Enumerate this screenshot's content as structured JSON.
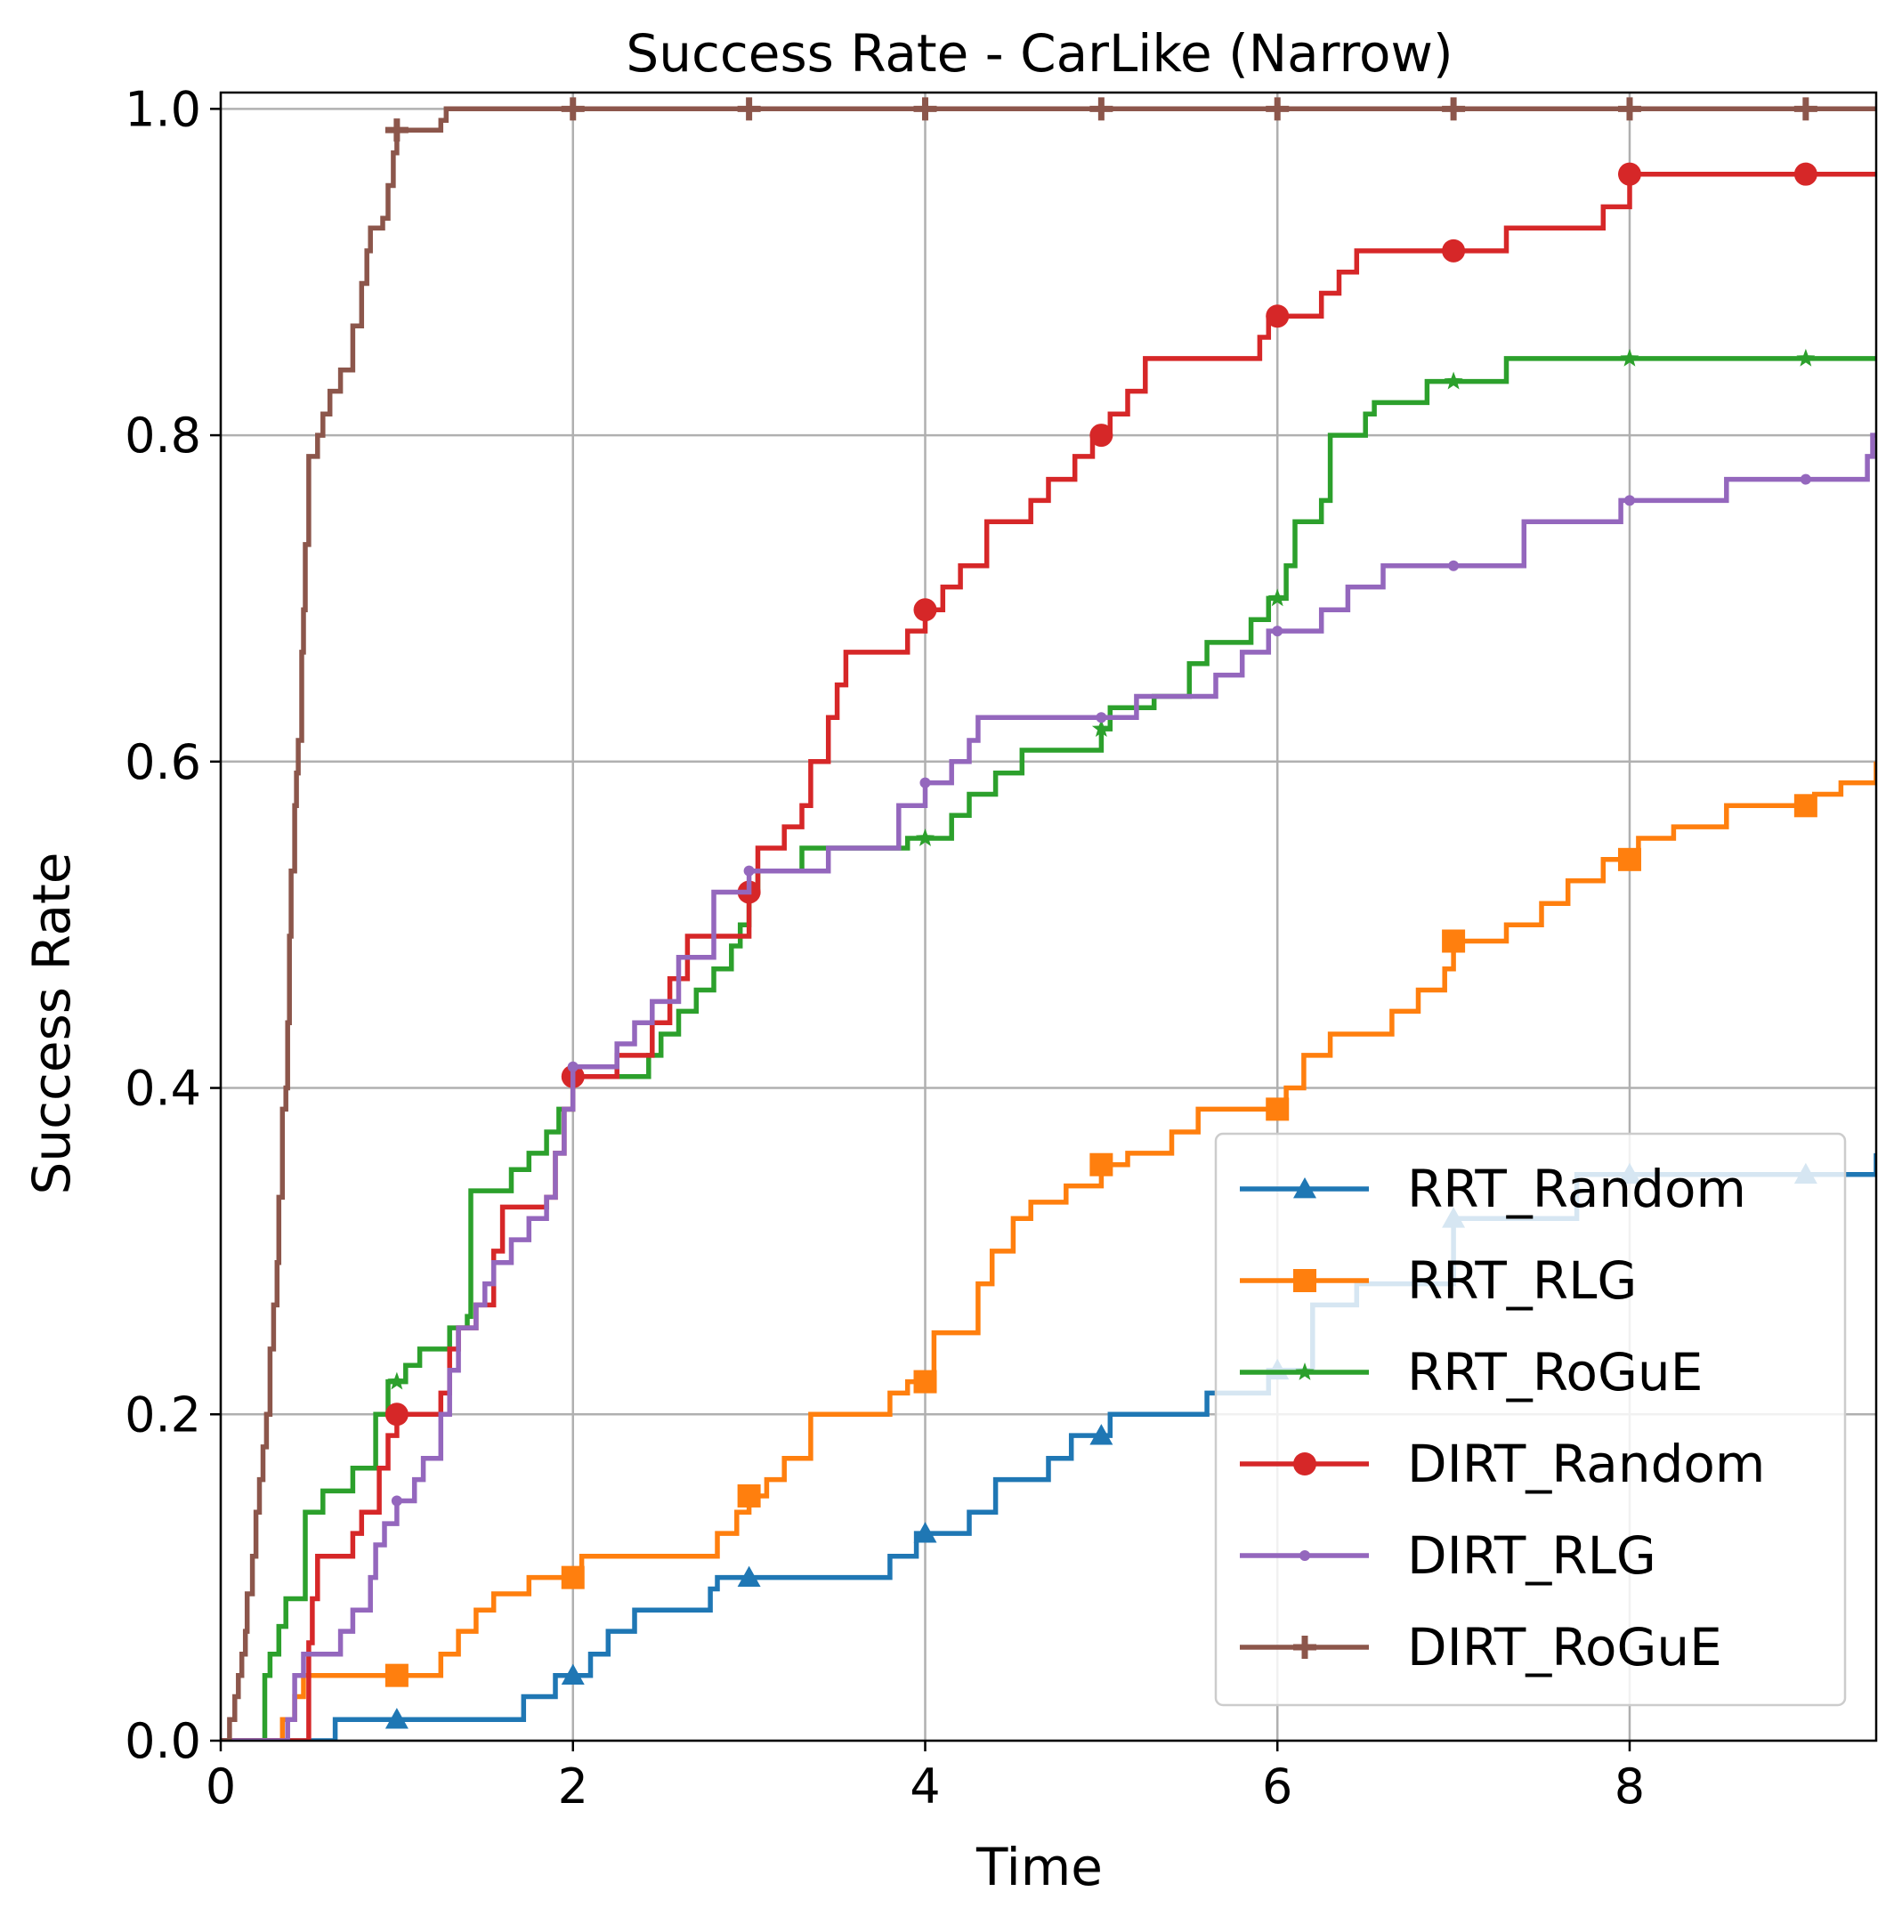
{
  "chart_data": {
    "type": "line",
    "title": "Success Rate - CarLike (Narrow)",
    "xlabel": "Time",
    "ylabel": "Success Rate",
    "xlim": [
      0,
      9.4
    ],
    "ylim": [
      0,
      1.01
    ],
    "xticks": [
      0,
      2,
      4,
      6,
      8
    ],
    "xtick_labels": [
      "0",
      "2",
      "4",
      "6",
      "8"
    ],
    "yticks": [
      0.0,
      0.2,
      0.4,
      0.6,
      0.8,
      1.0
    ],
    "ytick_labels": [
      "0.0",
      "0.2",
      "0.4",
      "0.6",
      "0.8",
      "1.0"
    ],
    "grid": true,
    "legend_position": "lower-right",
    "step": "post",
    "series": [
      {
        "name": "RRT_Random",
        "color": "#1f77b4",
        "marker": "triangle",
        "points": [
          [
            0.0,
            0
          ],
          [
            0.65,
            0.013
          ],
          [
            1.72,
            0.027
          ],
          [
            1.9,
            0.04
          ],
          [
            2.1,
            0.053
          ],
          [
            2.2,
            0.067
          ],
          [
            2.35,
            0.08
          ],
          [
            2.78,
            0.093
          ],
          [
            2.82,
            0.1
          ],
          [
            3.8,
            0.113
          ],
          [
            3.95,
            0.127
          ],
          [
            4.25,
            0.14
          ],
          [
            4.4,
            0.16
          ],
          [
            4.7,
            0.173
          ],
          [
            4.83,
            0.187
          ],
          [
            5.05,
            0.2
          ],
          [
            5.6,
            0.213
          ],
          [
            5.95,
            0.227
          ],
          [
            6.2,
            0.267
          ],
          [
            6.45,
            0.28
          ],
          [
            7.0,
            0.32
          ],
          [
            7.7,
            0.347
          ],
          [
            9.4,
            0.36
          ]
        ],
        "marker_x": [
          1,
          2,
          3,
          4,
          5,
          6,
          7,
          8,
          9
        ]
      },
      {
        "name": "RRT_RLG",
        "color": "#ff7f0e",
        "marker": "square",
        "points": [
          [
            0.0,
            0
          ],
          [
            0.35,
            0.013
          ],
          [
            0.42,
            0.027
          ],
          [
            0.47,
            0.04
          ],
          [
            1.25,
            0.053
          ],
          [
            1.35,
            0.067
          ],
          [
            1.45,
            0.08
          ],
          [
            1.55,
            0.09
          ],
          [
            1.75,
            0.1
          ],
          [
            2.05,
            0.113
          ],
          [
            2.82,
            0.127
          ],
          [
            2.93,
            0.14
          ],
          [
            3.0,
            0.15
          ],
          [
            3.1,
            0.16
          ],
          [
            3.2,
            0.173
          ],
          [
            3.35,
            0.2
          ],
          [
            3.8,
            0.213
          ],
          [
            3.9,
            0.22
          ],
          [
            4.05,
            0.25
          ],
          [
            4.3,
            0.28
          ],
          [
            4.38,
            0.3
          ],
          [
            4.5,
            0.32
          ],
          [
            4.6,
            0.33
          ],
          [
            4.8,
            0.34
          ],
          [
            5.0,
            0.353
          ],
          [
            5.15,
            0.36
          ],
          [
            5.4,
            0.373
          ],
          [
            5.55,
            0.387
          ],
          [
            6.05,
            0.4
          ],
          [
            6.15,
            0.42
          ],
          [
            6.3,
            0.433
          ],
          [
            6.65,
            0.447
          ],
          [
            6.8,
            0.46
          ],
          [
            6.95,
            0.473
          ],
          [
            7.0,
            0.49
          ],
          [
            7.3,
            0.5
          ],
          [
            7.5,
            0.513
          ],
          [
            7.65,
            0.527
          ],
          [
            7.85,
            0.54
          ],
          [
            8.05,
            0.553
          ],
          [
            8.25,
            0.56
          ],
          [
            8.55,
            0.573
          ],
          [
            9.05,
            0.58
          ],
          [
            9.2,
            0.587
          ],
          [
            9.4,
            0.6
          ]
        ],
        "marker_x": [
          1,
          2,
          3,
          4,
          5,
          6,
          7,
          8,
          9
        ]
      },
      {
        "name": "RRT_RoGuE",
        "color": "#2ca02c",
        "marker": "star",
        "points": [
          [
            0.0,
            0
          ],
          [
            0.25,
            0.04
          ],
          [
            0.28,
            0.053
          ],
          [
            0.33,
            0.07
          ],
          [
            0.37,
            0.087
          ],
          [
            0.48,
            0.14
          ],
          [
            0.58,
            0.153
          ],
          [
            0.75,
            0.167
          ],
          [
            0.88,
            0.2
          ],
          [
            0.95,
            0.22
          ],
          [
            1.05,
            0.23
          ],
          [
            1.13,
            0.24
          ],
          [
            1.3,
            0.253
          ],
          [
            1.4,
            0.26
          ],
          [
            1.42,
            0.337
          ],
          [
            1.65,
            0.35
          ],
          [
            1.75,
            0.36
          ],
          [
            1.85,
            0.373
          ],
          [
            1.92,
            0.387
          ],
          [
            2.0,
            0.407
          ],
          [
            2.43,
            0.42
          ],
          [
            2.5,
            0.433
          ],
          [
            2.6,
            0.447
          ],
          [
            2.7,
            0.46
          ],
          [
            2.8,
            0.473
          ],
          [
            2.9,
            0.487
          ],
          [
            2.95,
            0.5
          ],
          [
            3.0,
            0.52
          ],
          [
            3.05,
            0.533
          ],
          [
            3.3,
            0.547
          ],
          [
            3.9,
            0.553
          ],
          [
            4.15,
            0.567
          ],
          [
            4.25,
            0.58
          ],
          [
            4.4,
            0.593
          ],
          [
            4.55,
            0.607
          ],
          [
            5.0,
            0.62
          ],
          [
            5.05,
            0.633
          ],
          [
            5.3,
            0.64
          ],
          [
            5.5,
            0.66
          ],
          [
            5.6,
            0.673
          ],
          [
            5.85,
            0.687
          ],
          [
            5.95,
            0.7
          ],
          [
            6.05,
            0.72
          ],
          [
            6.1,
            0.747
          ],
          [
            6.25,
            0.76
          ],
          [
            6.3,
            0.8
          ],
          [
            6.5,
            0.813
          ],
          [
            6.55,
            0.82
          ],
          [
            6.85,
            0.833
          ],
          [
            7.3,
            0.847
          ],
          [
            9.4,
            0.847
          ]
        ],
        "marker_x": [
          1,
          2,
          3,
          4,
          5,
          6,
          7,
          8,
          9
        ]
      },
      {
        "name": "DIRT_Random",
        "color": "#d62728",
        "marker": "circle",
        "points": [
          [
            0.0,
            0
          ],
          [
            0.5,
            0.06
          ],
          [
            0.52,
            0.087
          ],
          [
            0.55,
            0.113
          ],
          [
            0.75,
            0.127
          ],
          [
            0.8,
            0.14
          ],
          [
            0.9,
            0.167
          ],
          [
            0.95,
            0.187
          ],
          [
            1.0,
            0.2
          ],
          [
            1.25,
            0.213
          ],
          [
            1.3,
            0.24
          ],
          [
            1.35,
            0.253
          ],
          [
            1.45,
            0.267
          ],
          [
            1.55,
            0.3
          ],
          [
            1.6,
            0.327
          ],
          [
            1.85,
            0.333
          ],
          [
            1.9,
            0.36
          ],
          [
            1.95,
            0.387
          ],
          [
            2.0,
            0.407
          ],
          [
            2.25,
            0.42
          ],
          [
            2.45,
            0.44
          ],
          [
            2.55,
            0.467
          ],
          [
            2.65,
            0.493
          ],
          [
            3.0,
            0.52
          ],
          [
            3.05,
            0.547
          ],
          [
            3.2,
            0.56
          ],
          [
            3.3,
            0.573
          ],
          [
            3.35,
            0.6
          ],
          [
            3.45,
            0.627
          ],
          [
            3.5,
            0.647
          ],
          [
            3.55,
            0.667
          ],
          [
            3.9,
            0.68
          ],
          [
            4.0,
            0.693
          ],
          [
            4.1,
            0.707
          ],
          [
            4.2,
            0.72
          ],
          [
            4.35,
            0.747
          ],
          [
            4.6,
            0.76
          ],
          [
            4.7,
            0.773
          ],
          [
            4.85,
            0.787
          ],
          [
            4.95,
            0.8
          ],
          [
            5.05,
            0.813
          ],
          [
            5.15,
            0.827
          ],
          [
            5.25,
            0.847
          ],
          [
            5.9,
            0.86
          ],
          [
            5.95,
            0.873
          ],
          [
            6.25,
            0.887
          ],
          [
            6.35,
            0.9
          ],
          [
            6.45,
            0.913
          ],
          [
            7.3,
            0.927
          ],
          [
            7.85,
            0.94
          ],
          [
            8.0,
            0.96
          ],
          [
            9.4,
            0.96
          ]
        ],
        "marker_x": [
          1,
          2,
          3,
          4,
          5,
          6,
          7,
          8,
          9
        ]
      },
      {
        "name": "DIRT_RLG",
        "color": "#9467bd",
        "marker": "point",
        "points": [
          [
            0.0,
            0
          ],
          [
            0.38,
            0.013
          ],
          [
            0.42,
            0.04
          ],
          [
            0.47,
            0.053
          ],
          [
            0.68,
            0.067
          ],
          [
            0.75,
            0.08
          ],
          [
            0.85,
            0.1
          ],
          [
            0.88,
            0.12
          ],
          [
            0.93,
            0.133
          ],
          [
            1.0,
            0.147
          ],
          [
            1.1,
            0.16
          ],
          [
            1.15,
            0.173
          ],
          [
            1.25,
            0.2
          ],
          [
            1.3,
            0.227
          ],
          [
            1.35,
            0.253
          ],
          [
            1.45,
            0.267
          ],
          [
            1.5,
            0.28
          ],
          [
            1.55,
            0.293
          ],
          [
            1.65,
            0.307
          ],
          [
            1.75,
            0.32
          ],
          [
            1.85,
            0.333
          ],
          [
            1.9,
            0.36
          ],
          [
            1.95,
            0.387
          ],
          [
            2.0,
            0.413
          ],
          [
            2.25,
            0.427
          ],
          [
            2.35,
            0.44
          ],
          [
            2.45,
            0.453
          ],
          [
            2.6,
            0.48
          ],
          [
            2.8,
            0.52
          ],
          [
            3.0,
            0.533
          ],
          [
            3.45,
            0.547
          ],
          [
            3.85,
            0.573
          ],
          [
            4.0,
            0.587
          ],
          [
            4.15,
            0.6
          ],
          [
            4.25,
            0.613
          ],
          [
            4.3,
            0.627
          ],
          [
            5.2,
            0.64
          ],
          [
            5.65,
            0.653
          ],
          [
            5.8,
            0.667
          ],
          [
            5.95,
            0.68
          ],
          [
            6.25,
            0.693
          ],
          [
            6.4,
            0.707
          ],
          [
            6.6,
            0.72
          ],
          [
            7.4,
            0.747
          ],
          [
            7.95,
            0.76
          ],
          [
            8.55,
            0.773
          ],
          [
            9.35,
            0.787
          ],
          [
            9.38,
            0.8
          ],
          [
            9.4,
            0.8
          ]
        ],
        "marker_x": [
          1,
          2,
          3,
          4,
          5,
          6,
          7,
          8,
          9
        ]
      },
      {
        "name": "DIRT_RoGuE",
        "color": "#8c564b",
        "marker": "plus",
        "points": [
          [
            0.0,
            0
          ],
          [
            0.05,
            0.013
          ],
          [
            0.08,
            0.027
          ],
          [
            0.1,
            0.04
          ],
          [
            0.12,
            0.053
          ],
          [
            0.14,
            0.067
          ],
          [
            0.15,
            0.09
          ],
          [
            0.18,
            0.113
          ],
          [
            0.2,
            0.14
          ],
          [
            0.22,
            0.16
          ],
          [
            0.24,
            0.18
          ],
          [
            0.26,
            0.2
          ],
          [
            0.28,
            0.24
          ],
          [
            0.3,
            0.267
          ],
          [
            0.32,
            0.293
          ],
          [
            0.33,
            0.333
          ],
          [
            0.35,
            0.387
          ],
          [
            0.37,
            0.4
          ],
          [
            0.38,
            0.44
          ],
          [
            0.39,
            0.493
          ],
          [
            0.4,
            0.533
          ],
          [
            0.42,
            0.573
          ],
          [
            0.43,
            0.593
          ],
          [
            0.44,
            0.613
          ],
          [
            0.46,
            0.667
          ],
          [
            0.47,
            0.693
          ],
          [
            0.48,
            0.733
          ],
          [
            0.5,
            0.787
          ],
          [
            0.55,
            0.8
          ],
          [
            0.58,
            0.813
          ],
          [
            0.62,
            0.827
          ],
          [
            0.68,
            0.84
          ],
          [
            0.75,
            0.867
          ],
          [
            0.8,
            0.893
          ],
          [
            0.83,
            0.913
          ],
          [
            0.85,
            0.927
          ],
          [
            0.92,
            0.933
          ],
          [
            0.95,
            0.953
          ],
          [
            0.98,
            0.973
          ],
          [
            1.0,
            0.987
          ],
          [
            1.25,
            0.993
          ],
          [
            1.28,
            1.0
          ],
          [
            9.4,
            1.0
          ]
        ],
        "marker_x": [
          1,
          2,
          3,
          4,
          5,
          6,
          7,
          8,
          9
        ]
      }
    ]
  }
}
